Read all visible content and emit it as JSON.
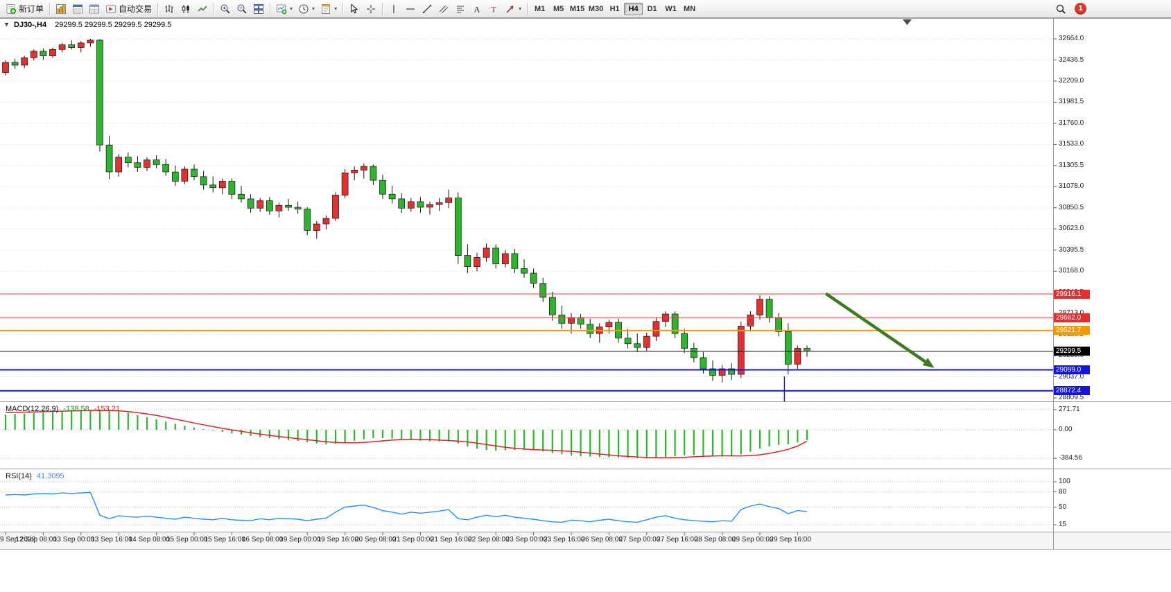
{
  "toolbar": {
    "groups": [
      {
        "items": [
          {
            "icon": "new-order",
            "label": "新订单",
            "name": "new-order-button"
          }
        ]
      },
      {
        "items": [
          {
            "icon": "charts",
            "name": "charts-button"
          },
          {
            "icon": "profiles",
            "name": "profiles-button"
          },
          {
            "icon": "data-window",
            "name": "data-window-button"
          },
          {
            "icon": "autotrading",
            "label": "自动交易",
            "name": "autotrading-button"
          }
        ]
      },
      {
        "items": [
          {
            "icon": "bar-chart",
            "name": "bar-chart-button"
          },
          {
            "icon": "candlestick",
            "name": "candlestick-button"
          },
          {
            "icon": "line-chart",
            "name": "line-chart-button"
          }
        ]
      },
      {
        "items": [
          {
            "icon": "zoom-in",
            "name": "zoom-in-button"
          },
          {
            "icon": "zoom-out",
            "name": "zoom-out-button"
          },
          {
            "icon": "tile-windows",
            "name": "tile-windows-button"
          }
        ]
      },
      {
        "items": [
          {
            "icon": "new-chart",
            "name": "new-chart-button",
            "dropdown": true
          },
          {
            "icon": "period",
            "name": "periods-button",
            "dropdown": true
          },
          {
            "icon": "template",
            "name": "templates-button",
            "dropdown": true
          }
        ]
      },
      {
        "items": [
          {
            "icon": "cursor",
            "name": "cursor-button"
          },
          {
            "icon": "crosshair",
            "name": "crosshair-button"
          }
        ]
      },
      {
        "items": [
          {
            "icon": "vertical-line",
            "name": "vertical-line-button"
          },
          {
            "icon": "horizontal-line",
            "name": "horizontal-line-button"
          },
          {
            "icon": "trendline",
            "name": "trendline-button"
          },
          {
            "icon": "channel",
            "name": "equidistant-channel-button"
          },
          {
            "icon": "fibonacci",
            "name": "fibonacci-button"
          },
          {
            "icon": "text",
            "name": "text-button"
          },
          {
            "icon": "text-label",
            "name": "text-label-button"
          },
          {
            "icon": "arrows",
            "name": "arrows-button",
            "dropdown": true
          }
        ]
      }
    ],
    "timeframes": [
      {
        "label": "M1"
      },
      {
        "label": "M5"
      },
      {
        "label": "M15"
      },
      {
        "label": "M30"
      },
      {
        "label": "H1"
      },
      {
        "label": "H4",
        "active": true
      },
      {
        "label": "D1"
      },
      {
        "label": "W1"
      },
      {
        "label": "MN"
      }
    ],
    "notification_count": "1"
  },
  "chart": {
    "title_symbol": "DJ30-,H4",
    "title_ohlc": "29299.5 29299.5 29299.5 29299.5",
    "one_click_toggle": "▼",
    "price_axis_ticks": [
      "32664.0",
      "32436.5",
      "32209.0",
      "31981.5",
      "31760.0",
      "31533.0",
      "31305.5",
      "31078.0",
      "30850.5",
      "30623.0",
      "30395.5",
      "30168.0",
      "29940.5",
      "29713.0",
      "29485.5",
      "29258.0",
      "29037.0",
      "28809.5"
    ],
    "price_badges": [
      {
        "value": "29916.1",
        "price": 29916.1,
        "bg": "#e03030",
        "line": "#ff3434",
        "line_width": 1
      },
      {
        "value": "29662.0",
        "price": 29662.0,
        "bg": "#e03030",
        "line": "#ff3434",
        "line_width": 1
      },
      {
        "value": "29521.7",
        "price": 29521.7,
        "bg": "#f59a00",
        "line": "#f59a00",
        "line_width": 2
      },
      {
        "value": "29299.5",
        "price": 29299.5,
        "bg": "#000000",
        "line": "#000000",
        "line_width": 1,
        "current": true
      },
      {
        "value": "29099.0",
        "price": 29099.0,
        "bg": "#1414dc",
        "line": "#1414dc",
        "line_width": 2
      },
      {
        "value": "28872.4",
        "price": 28872.4,
        "bg": "#1414dc",
        "line": "#1414dc",
        "line_width": 2
      }
    ],
    "time_labels": [
      {
        "bar": 0,
        "text": "9 Sep 2022"
      },
      {
        "bar": 4,
        "text": "12 Sep 08:00"
      },
      {
        "bar": 8,
        "text": "13 Sep 00:00"
      },
      {
        "bar": 12,
        "text": "13 Sep 16:00"
      },
      {
        "bar": 16,
        "text": "14 Sep 08:00"
      },
      {
        "bar": 20,
        "text": "15 Sep 00:00"
      },
      {
        "bar": 24,
        "text": "15 Sep 16:00"
      },
      {
        "bar": 28,
        "text": "16 Sep 08:00"
      },
      {
        "bar": 32,
        "text": "19 Sep 00:00"
      },
      {
        "bar": 36,
        "text": "19 Sep 16:00"
      },
      {
        "bar": 40,
        "text": "20 Sep 08:00"
      },
      {
        "bar": 44,
        "text": "21 Sep 00:00"
      },
      {
        "bar": 48,
        "text": "21 Sep 16:00"
      },
      {
        "bar": 52,
        "text": "22 Sep 08:00"
      },
      {
        "bar": 56,
        "text": "23 Sep 00:00"
      },
      {
        "bar": 60,
        "text": "23 Sep 16:00"
      },
      {
        "bar": 64,
        "text": "26 Sep 08:00"
      },
      {
        "bar": 68,
        "text": "27 Sep 00:00"
      },
      {
        "bar": 72,
        "text": "27 Sep 16:00"
      },
      {
        "bar": 76,
        "text": "28 Sep 08:00"
      },
      {
        "bar": 80,
        "text": "29 Sep 00:00"
      },
      {
        "bar": 84,
        "text": "29 Sep 16:00"
      }
    ]
  },
  "indicators": {
    "macd": {
      "name": "MACD(12,26,9)",
      "value": "-138.58",
      "signal": "-153.21",
      "axis": [
        "271.71",
        "0.00",
        "-384.56"
      ]
    },
    "rsi": {
      "name": "RSI(14)",
      "value": "41.3095",
      "axis": [
        "100",
        "80",
        "50",
        "15"
      ]
    }
  },
  "chart_data": {
    "type": "candlestick",
    "symbol": "DJ30-",
    "timeframe": "H4",
    "ohlc": [
      [
        32300,
        32430,
        32270,
        32410
      ],
      [
        32410,
        32450,
        32340,
        32380
      ],
      [
        32380,
        32480,
        32350,
        32460
      ],
      [
        32460,
        32550,
        32430,
        32530
      ],
      [
        32530,
        32560,
        32440,
        32480
      ],
      [
        32480,
        32570,
        32460,
        32550
      ],
      [
        32550,
        32620,
        32520,
        32600
      ],
      [
        32600,
        32650,
        32550,
        32570
      ],
      [
        32570,
        32640,
        32520,
        32620
      ],
      [
        32620,
        32664,
        32580,
        32650
      ],
      [
        32650,
        32660,
        31450,
        31520
      ],
      [
        31520,
        31620,
        31150,
        31230
      ],
      [
        31230,
        31420,
        31180,
        31390
      ],
      [
        31390,
        31440,
        31280,
        31330
      ],
      [
        31330,
        31400,
        31230,
        31280
      ],
      [
        31280,
        31390,
        31240,
        31360
      ],
      [
        31360,
        31410,
        31270,
        31310
      ],
      [
        31310,
        31370,
        31190,
        31230
      ],
      [
        31230,
        31300,
        31080,
        31130
      ],
      [
        31130,
        31290,
        31100,
        31260
      ],
      [
        31260,
        31310,
        31140,
        31180
      ],
      [
        31180,
        31240,
        31040,
        31090
      ],
      [
        31090,
        31180,
        31010,
        31060
      ],
      [
        31060,
        31160,
        30990,
        31130
      ],
      [
        31130,
        31160,
        30940,
        30990
      ],
      [
        30990,
        31080,
        30900,
        30940
      ],
      [
        30940,
        30990,
        30790,
        30840
      ],
      [
        30840,
        30950,
        30800,
        30920
      ],
      [
        30920,
        30960,
        30770,
        30810
      ],
      [
        30810,
        30900,
        30740,
        30870
      ],
      [
        30870,
        30940,
        30810,
        30850
      ],
      [
        30850,
        30910,
        30780,
        30830
      ],
      [
        30830,
        30850,
        30550,
        30600
      ],
      [
        30600,
        30700,
        30510,
        30670
      ],
      [
        30670,
        30760,
        30610,
        30730
      ],
      [
        30730,
        31010,
        30700,
        30980
      ],
      [
        30980,
        31260,
        30950,
        31220
      ],
      [
        31220,
        31290,
        31140,
        31250
      ],
      [
        31250,
        31320,
        31160,
        31290
      ],
      [
        31290,
        31310,
        31090,
        31140
      ],
      [
        31140,
        31200,
        30940,
        30990
      ],
      [
        30990,
        31080,
        30890,
        30940
      ],
      [
        30940,
        31000,
        30790,
        30840
      ],
      [
        30840,
        30950,
        30800,
        30910
      ],
      [
        30910,
        30960,
        30790,
        30850
      ],
      [
        30850,
        30910,
        30770,
        30880
      ],
      [
        30880,
        30950,
        30810,
        30900
      ],
      [
        30900,
        31040,
        30840,
        30950
      ],
      [
        30950,
        31010,
        30240,
        30330
      ],
      [
        30330,
        30450,
        30140,
        30210
      ],
      [
        30210,
        30360,
        30160,
        30310
      ],
      [
        30310,
        30460,
        30260,
        30410
      ],
      [
        30410,
        30450,
        30190,
        30240
      ],
      [
        30240,
        30390,
        30200,
        30350
      ],
      [
        30350,
        30400,
        30140,
        30190
      ],
      [
        30190,
        30290,
        30090,
        30140
      ],
      [
        30140,
        30190,
        29980,
        30030
      ],
      [
        30030,
        30090,
        29830,
        29880
      ],
      [
        29880,
        29940,
        29630,
        29690
      ],
      [
        29690,
        29790,
        29540,
        29600
      ],
      [
        29600,
        29710,
        29490,
        29660
      ],
      [
        29660,
        29700,
        29540,
        29590
      ],
      [
        29590,
        29650,
        29440,
        29490
      ],
      [
        29490,
        29600,
        29390,
        29560
      ],
      [
        29560,
        29640,
        29490,
        29610
      ],
      [
        29610,
        29650,
        29390,
        29440
      ],
      [
        29440,
        29540,
        29330,
        29380
      ],
      [
        29380,
        29490,
        29290,
        29340
      ],
      [
        29340,
        29500,
        29300,
        29460
      ],
      [
        29460,
        29660,
        29410,
        29620
      ],
      [
        29620,
        29730,
        29560,
        29700
      ],
      [
        29700,
        29730,
        29440,
        29490
      ],
      [
        29490,
        29540,
        29280,
        29330
      ],
      [
        29330,
        29390,
        29180,
        29230
      ],
      [
        29230,
        29290,
        29060,
        29110
      ],
      [
        29110,
        29200,
        28980,
        29040
      ],
      [
        29040,
        29150,
        28960,
        29110
      ],
      [
        29110,
        29170,
        28990,
        29050
      ],
      [
        29050,
        29620,
        29010,
        29570
      ],
      [
        29570,
        29730,
        29510,
        29690
      ],
      [
        29690,
        29900,
        29640,
        29860
      ],
      [
        29860,
        29890,
        29610,
        29660
      ],
      [
        29660,
        29710,
        29460,
        29510
      ],
      [
        29510,
        29600,
        29050,
        29160
      ],
      [
        29160,
        29360,
        29110,
        29330
      ],
      [
        29330,
        29360,
        29240,
        29299.5
      ]
    ],
    "macd_histogram": [
      205,
      215,
      220,
      228,
      235,
      242,
      248,
      255,
      262,
      268,
      271.7,
      265,
      250,
      228,
      200,
      170,
      140,
      110,
      82,
      55,
      30,
      8,
      -12,
      -30,
      -48,
      -65,
      -82,
      -98,
      -112,
      -125,
      -138,
      -150,
      -168,
      -185,
      -195,
      -188,
      -170,
      -148,
      -128,
      -115,
      -112,
      -118,
      -128,
      -138,
      -148,
      -155,
      -158,
      -155,
      -185,
      -225,
      -255,
      -272,
      -280,
      -278,
      -272,
      -270,
      -278,
      -292,
      -310,
      -330,
      -348,
      -358,
      -362,
      -366,
      -370,
      -374,
      -378,
      -382,
      -384.6,
      -380,
      -370,
      -356,
      -345,
      -342,
      -348,
      -356,
      -362,
      -360,
      -330,
      -295,
      -255,
      -225,
      -205,
      -195,
      -170,
      -138.6
    ],
    "macd_signal": [
      232,
      235,
      238,
      241,
      245,
      248,
      251,
      254,
      257,
      260,
      262,
      261,
      256,
      246,
      232,
      214,
      193,
      169,
      144,
      118,
      92,
      67,
      43,
      20,
      -1,
      -21,
      -40,
      -58,
      -75,
      -91,
      -106,
      -120,
      -134,
      -148,
      -161,
      -170,
      -175,
      -175,
      -170,
      -161,
      -150,
      -139,
      -131,
      -127,
      -128,
      -132,
      -138,
      -145,
      -153,
      -164,
      -180,
      -199,
      -218,
      -236,
      -250,
      -260,
      -267,
      -272,
      -277,
      -283,
      -291,
      -302,
      -314,
      -327,
      -339,
      -350,
      -359,
      -367,
      -373,
      -377,
      -378,
      -376,
      -371,
      -364,
      -357,
      -352,
      -350,
      -351,
      -352,
      -348,
      -337,
      -318,
      -293,
      -264,
      -220,
      -153.2
    ],
    "rsi": [
      74,
      75,
      74,
      76,
      77,
      76,
      78,
      77,
      78,
      79,
      34,
      27,
      33,
      31,
      30,
      32,
      30,
      28,
      26,
      30,
      28,
      26,
      25,
      28,
      25,
      24,
      23,
      27,
      25,
      28,
      27,
      26,
      23,
      26,
      28,
      40,
      50,
      52,
      54,
      49,
      43,
      40,
      36,
      40,
      38,
      40,
      42,
      45,
      27,
      25,
      30,
      34,
      31,
      34,
      30,
      28,
      26,
      23,
      21,
      20,
      24,
      23,
      21,
      24,
      26,
      23,
      21,
      20,
      25,
      30,
      33,
      28,
      25,
      23,
      22,
      21,
      23,
      22,
      45,
      52,
      56,
      51,
      47,
      37,
      43,
      41.31
    ],
    "colors": {
      "up": "#e03232",
      "down": "#2eb42e",
      "macd_histogram": "#2db52d",
      "macd_signal": "#dd2222",
      "rsi_line": "#1e90ff"
    },
    "annotations": {
      "arrow": {
        "from_bar": 87,
        "from_price": 29920,
        "to_bar": 98.5,
        "to_price": 29120,
        "color": "#3a7d1e"
      },
      "vline": {
        "bar": 82.6,
        "color": "#2020c8"
      }
    }
  }
}
